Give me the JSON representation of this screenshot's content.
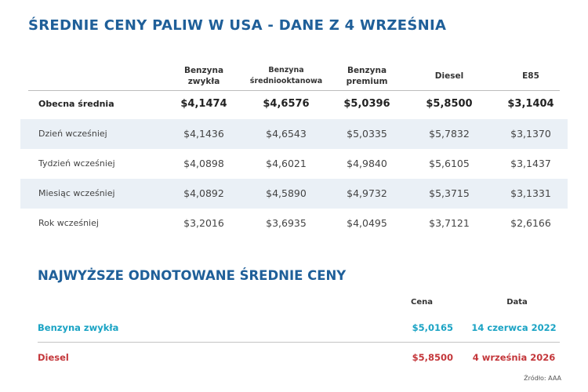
{
  "title": "ŚREDNIE CENY PALIW W USA - DANE Z 4 WRZEŚNIA",
  "table": {
    "columns": [
      {
        "l1": "Benzyna",
        "l2": "zwykła"
      },
      {
        "l1": "Benzyna",
        "l2": "średniooktanowa"
      },
      {
        "l1": "Benzyna",
        "l2": "premium"
      },
      {
        "l1": "Diesel",
        "l2": ""
      },
      {
        "l1": "E85",
        "l2": ""
      }
    ],
    "rows": [
      {
        "label": "Obecna średnia",
        "values": [
          "$4,1474",
          "$4,6576",
          "$5,0396",
          "$5,8500",
          "$3,1404"
        ]
      },
      {
        "label": "Dzień wcześniej",
        "values": [
          "$4,1436",
          "$4,6543",
          "$5,0335",
          "$5,7832",
          "$3,1370"
        ]
      },
      {
        "label": "Tydzień wcześniej",
        "values": [
          "$4,0898",
          "$4,6021",
          "$4,9840",
          "$5,6105",
          "$3,1437"
        ]
      },
      {
        "label": "Miesiąc wcześniej",
        "values": [
          "$4,0892",
          "$4,5890",
          "$4,9732",
          "$5,3715",
          "$3,1331"
        ]
      },
      {
        "label": "Rok wcześniej",
        "values": [
          "$3,2016",
          "$3,6935",
          "$4,0495",
          "$3,7121",
          "$2,6166"
        ]
      }
    ]
  },
  "records": {
    "title": "NAJWYŻSZE ODNOTOWANE ŚREDNIE CENY",
    "price_header": "Cena",
    "date_header": "Data",
    "rows": [
      {
        "name": "Benzyna zwykła",
        "price": "$5,0165",
        "date": "14 czerwca 2022",
        "color": "#1aa3c4"
      },
      {
        "name": "Diesel",
        "price": "$5,8500",
        "date": "4 września 2026",
        "color": "#c4373b"
      }
    ]
  },
  "source": "Źródło: AAA",
  "colors": {
    "title": "#1f5f99",
    "row_shade": "#eaf0f6"
  }
}
